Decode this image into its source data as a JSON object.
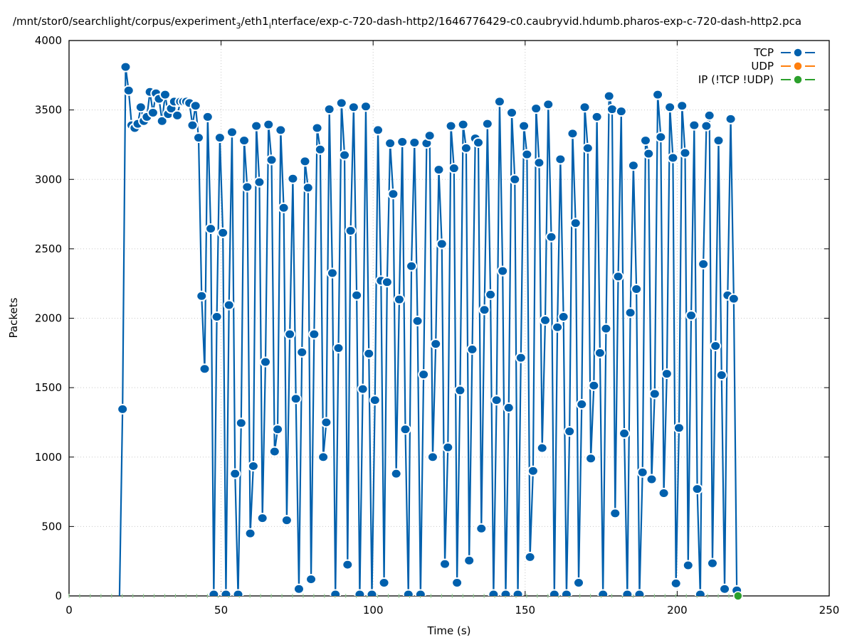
{
  "chart_data": {
    "type": "line",
    "title_parts": {
      "a": "/mnt/stor0/searchlight/corpus/experiment",
      "sub1": "3",
      "b": "/eth1",
      "sub2": "i",
      "c": "nterface/exp-c-720-dash-http2/1646776429-c0.caubryvid.hdumb.pharos-exp-c-720-dash-http2.pca"
    },
    "xlabel": "Time (s)",
    "ylabel": "Packets",
    "xlim": [
      0,
      250
    ],
    "ylim": [
      0,
      4000
    ],
    "xticks": [
      0,
      50,
      100,
      150,
      200,
      250
    ],
    "yticks": [
      0,
      500,
      1000,
      1500,
      2000,
      2500,
      3000,
      3500,
      4000
    ],
    "grid": true,
    "legend_position": "top-right",
    "series": [
      {
        "name": "TCP",
        "color": "#0060ad",
        "time_start": 16.6,
        "interval": 1,
        "values": [
          0,
          1345,
          3810,
          3640,
          3390,
          3370,
          3400,
          3520,
          3420,
          3450,
          3630,
          3480,
          3620,
          3580,
          3420,
          3610,
          3470,
          3510,
          3560,
          3460,
          3560,
          3560,
          3560,
          3550,
          3390,
          3530,
          3300,
          2160,
          1635,
          3450,
          2645,
          0,
          2010,
          3300,
          2615,
          0,
          2095,
          3340,
          880,
          0,
          1245,
          3280,
          2945,
          450,
          935,
          3385,
          2980,
          560,
          1685,
          3395,
          3140,
          1040,
          1200,
          3355,
          2795,
          545,
          1885,
          3005,
          1420,
          50,
          1755,
          3130,
          2940,
          120,
          1885,
          3370,
          3215,
          1000,
          1250,
          3505,
          2325,
          0,
          1785,
          3550,
          3175,
          225,
          2630,
          3520,
          2165,
          0,
          1490,
          3525,
          1745,
          0,
          1410,
          3355,
          2270,
          95,
          2260,
          3260,
          2895,
          880,
          2135,
          3270,
          1200,
          0,
          2375,
          3265,
          1980,
          0,
          1595,
          3260,
          3315,
          1000,
          1815,
          3070,
          2535,
          230,
          1070,
          3385,
          3080,
          95,
          1480,
          3395,
          3225,
          255,
          1775,
          3295,
          3265,
          485,
          2060,
          3400,
          2170,
          0,
          1410,
          3560,
          2340,
          0,
          1355,
          3480,
          3000,
          0,
          1715,
          3385,
          3180,
          280,
          900,
          3510,
          3120,
          1065,
          1985,
          3540,
          2585,
          0,
          1935,
          3145,
          2010,
          0,
          1185,
          3330,
          2685,
          95,
          1380,
          3520,
          3225,
          990,
          1515,
          3450,
          1750,
          0,
          1925,
          3600,
          3505,
          595,
          2300,
          3490,
          1170,
          0,
          2040,
          3100,
          2210,
          0,
          890,
          3280,
          3185,
          840,
          1455,
          3610,
          3305,
          740,
          1600,
          3520,
          3155,
          90,
          1210,
          3530,
          3190,
          220,
          2020,
          3390,
          770,
          0,
          2390,
          3385,
          3460,
          235,
          1800,
          3280,
          1590,
          50,
          2165,
          3435,
          2140,
          40
        ]
      },
      {
        "name": "UDP",
        "color": "#ff7f0e",
        "values": []
      },
      {
        "name": "IP (!TCP  !UDP)",
        "color": "#2ca02c",
        "points": [
          [
            220,
            0
          ]
        ]
      }
    ]
  }
}
